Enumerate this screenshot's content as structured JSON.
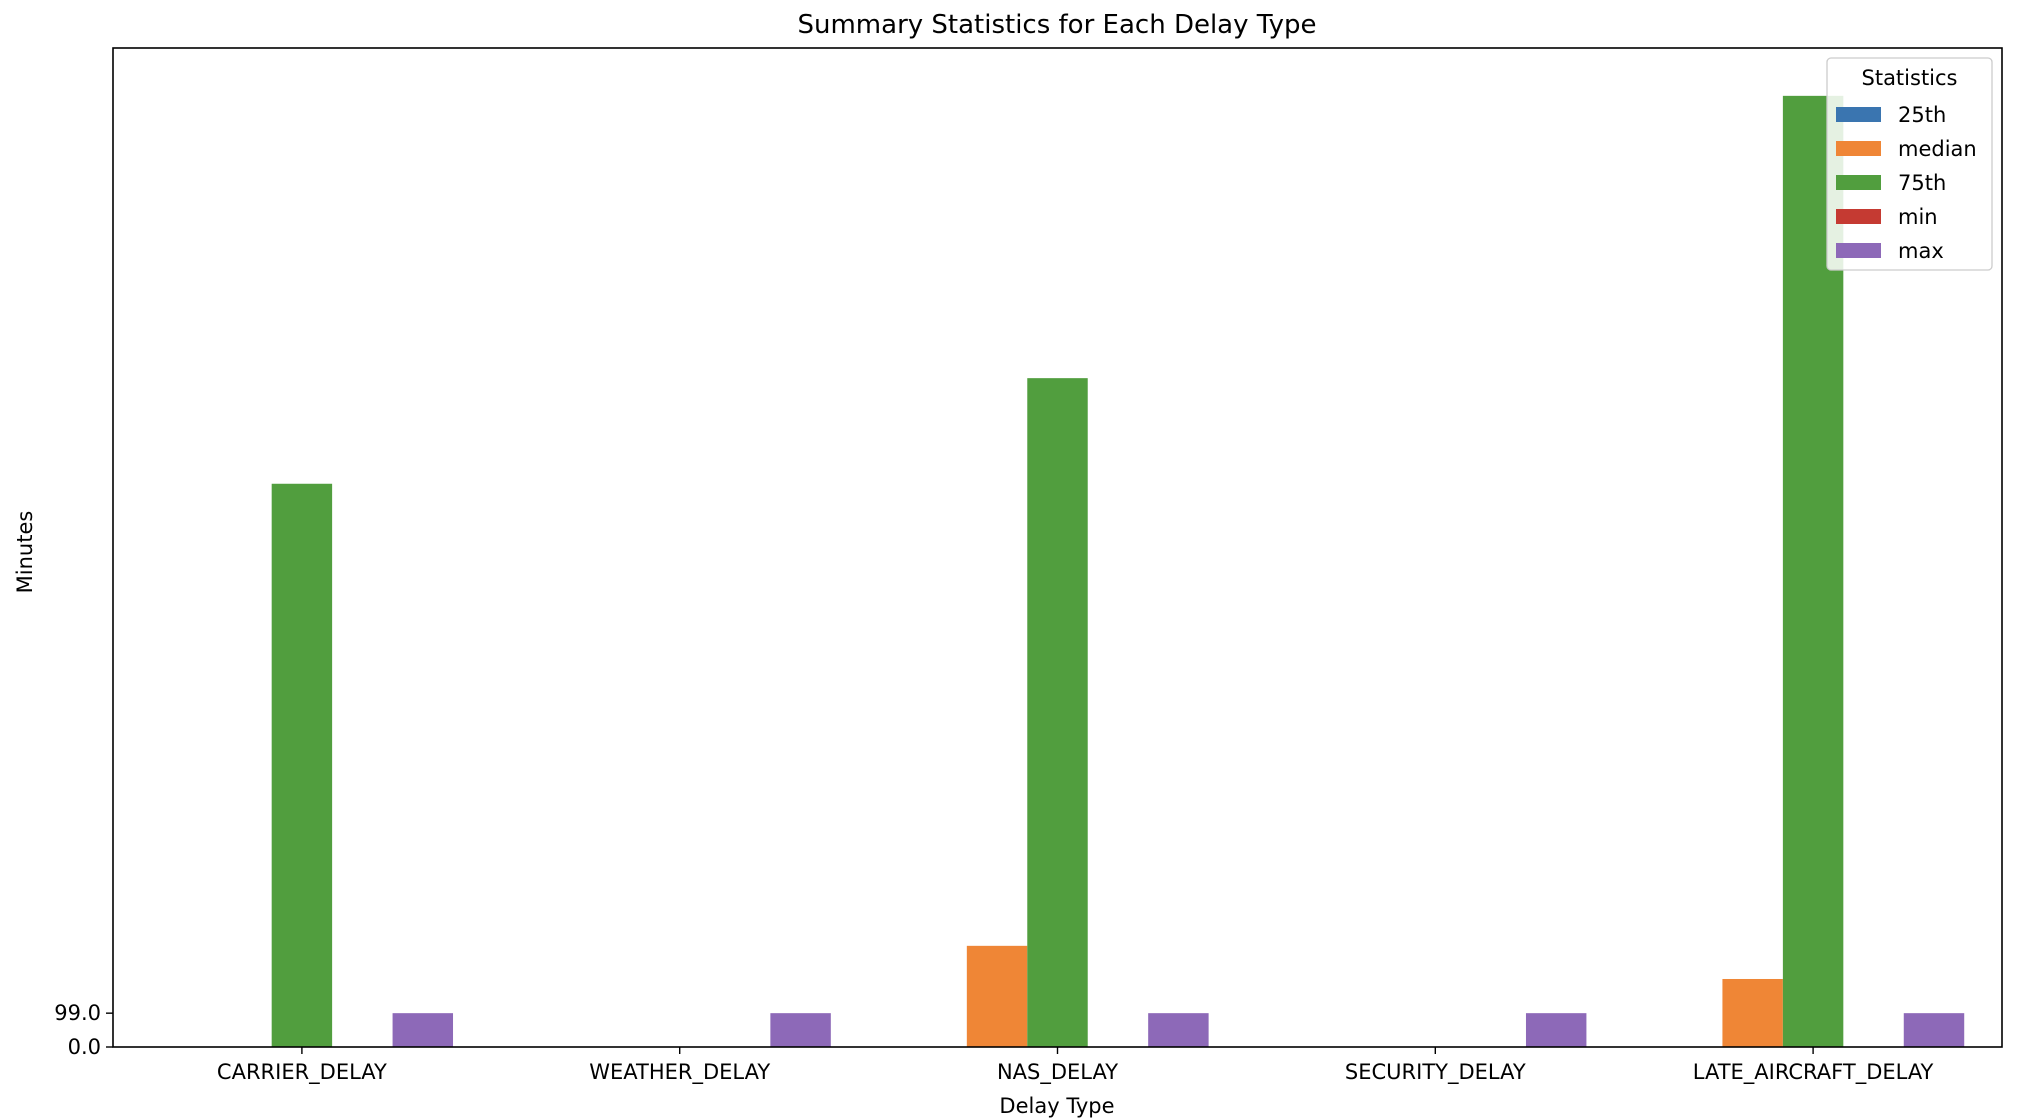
{
  "chart_data": {
    "type": "bar",
    "title": "Summary Statistics for Each Delay Type",
    "xlabel": "Delay Type",
    "ylabel": "Minutes",
    "categories": [
      "CARRIER_DELAY",
      "WEATHER_DELAY",
      "NAS_DELAY",
      "SECURITY_DELAY",
      "LATE_AIRCRAFT_DELAY"
    ],
    "series": [
      {
        "name": "25th",
        "color": "#3a75b0",
        "values": [
          0,
          0,
          0,
          0,
          0
        ]
      },
      {
        "name": "median",
        "color": "#ef8636",
        "values": [
          0,
          0,
          296,
          0,
          199
        ]
      },
      {
        "name": "75th",
        "color": "#519e3e",
        "values": [
          1648,
          0,
          1957,
          0,
          2783
        ]
      },
      {
        "name": "min",
        "color": "#c53a32",
        "values": [
          0,
          0,
          0,
          0,
          0
        ]
      },
      {
        "name": "max",
        "color": "#8d69b8",
        "values": [
          99,
          99,
          99,
          99,
          99
        ]
      }
    ],
    "ylim": [
      0,
      2923
    ],
    "yticks": [
      "0.0",
      "99.0"
    ],
    "ytick_values": [
      0,
      99
    ],
    "legend": {
      "title": "Statistics",
      "placement": "top-right"
    },
    "grid": false
  }
}
